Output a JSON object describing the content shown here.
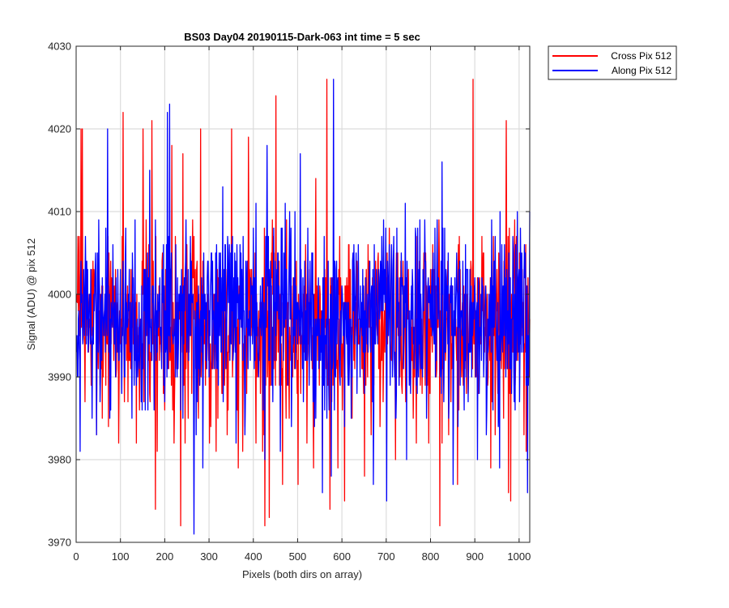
{
  "chart_data": {
    "type": "line",
    "title": "BS03 Day04 20190115-Dark-063 int time = 5 sec",
    "xlabel": "Pixels (both dirs on array)",
    "ylabel": "Signal (ADU) @ pix 512",
    "xlim": [
      0,
      1024
    ],
    "ylim": [
      3970,
      4030
    ],
    "xticks": [
      0,
      100,
      200,
      300,
      400,
      500,
      600,
      700,
      800,
      900,
      1000
    ],
    "yticks": [
      3970,
      3980,
      3990,
      4000,
      4010,
      4020,
      4030
    ],
    "grid": true,
    "legend_position": "outside-top-right",
    "series": [
      {
        "name": "Cross Pix 512",
        "color": "#ff0000",
        "mean": 3996.5,
        "spread": 5,
        "seed": 7,
        "peaks": [
          [
            2,
            3999
          ],
          [
            6,
            4007
          ],
          [
            10,
            4020
          ],
          [
            13,
            4020
          ],
          [
            58,
            3985
          ],
          [
            95,
            3982
          ],
          [
            105,
            4022
          ],
          [
            135,
            3982
          ],
          [
            150,
            4020
          ],
          [
            165,
            3988
          ],
          [
            170,
            4021
          ],
          [
            178,
            3974
          ],
          [
            182,
            3981
          ],
          [
            215,
            4018
          ],
          [
            220,
            3982
          ],
          [
            235,
            3972
          ],
          [
            240,
            4017
          ],
          [
            245,
            3982
          ],
          [
            280,
            4020
          ],
          [
            300,
            3982
          ],
          [
            315,
            3981
          ],
          [
            340,
            3983
          ],
          [
            350,
            4020
          ],
          [
            365,
            3979
          ],
          [
            375,
            3981
          ],
          [
            388,
            4019
          ],
          [
            405,
            3982
          ],
          [
            420,
            3981
          ],
          [
            425,
            3972
          ],
          [
            435,
            3973
          ],
          [
            450,
            4024
          ],
          [
            465,
            3977
          ],
          [
            480,
            3985
          ],
          [
            500,
            3977
          ],
          [
            520,
            3982
          ],
          [
            535,
            3979
          ],
          [
            540,
            4014
          ],
          [
            555,
            3980
          ],
          [
            565,
            4026
          ],
          [
            572,
            3974
          ],
          [
            590,
            3979
          ],
          [
            605,
            3975
          ],
          [
            650,
            3978
          ],
          [
            665,
            3983
          ],
          [
            700,
            3982
          ],
          [
            720,
            3980
          ],
          [
            760,
            3985
          ],
          [
            795,
            3982
          ],
          [
            820,
            3972
          ],
          [
            840,
            3983
          ],
          [
            860,
            3977
          ],
          [
            895,
            4026
          ],
          [
            935,
            3979
          ],
          [
            945,
            3983
          ],
          [
            970,
            4021
          ],
          [
            975,
            3976
          ],
          [
            980,
            3975
          ],
          [
            1010,
            3983
          ],
          [
            1015,
            3981
          ],
          [
            1022,
            3990
          ]
        ]
      },
      {
        "name": "Along Pix 512",
        "color": "#0000ff",
        "mean": 3997.5,
        "spread": 5,
        "seed": 19,
        "peaks": [
          [
            3,
            3990
          ],
          [
            8,
            3981
          ],
          [
            20,
            4007
          ],
          [
            35,
            3985
          ],
          [
            45,
            3983
          ],
          [
            70,
            4020
          ],
          [
            75,
            3985
          ],
          [
            125,
            3985
          ],
          [
            130,
            3989
          ],
          [
            140,
            3992
          ],
          [
            165,
            4015
          ],
          [
            175,
            3986
          ],
          [
            205,
            4022
          ],
          [
            210,
            4023
          ],
          [
            230,
            3994
          ],
          [
            240,
            3985
          ],
          [
            265,
            3971
          ],
          [
            270,
            3983
          ],
          [
            285,
            3979
          ],
          [
            330,
            4013
          ],
          [
            360,
            3982
          ],
          [
            380,
            3983
          ],
          [
            405,
            4011
          ],
          [
            425,
            3980
          ],
          [
            430,
            4018
          ],
          [
            460,
            3981
          ],
          [
            485,
            3984
          ],
          [
            505,
            4017
          ],
          [
            525,
            3989
          ],
          [
            540,
            3985
          ],
          [
            555,
            3976
          ],
          [
            575,
            3978
          ],
          [
            580,
            4026
          ],
          [
            605,
            3984
          ],
          [
            620,
            3985
          ],
          [
            640,
            3990
          ],
          [
            650,
            3988
          ],
          [
            670,
            3977
          ],
          [
            700,
            3975
          ],
          [
            720,
            3985
          ],
          [
            745,
            3980
          ],
          [
            790,
            3985
          ],
          [
            825,
            4016
          ],
          [
            840,
            3985
          ],
          [
            850,
            3977
          ],
          [
            875,
            3986
          ],
          [
            905,
            3980
          ],
          [
            925,
            3983
          ],
          [
            940,
            3986
          ],
          [
            955,
            3979
          ],
          [
            990,
            3986
          ],
          [
            1000,
            3987
          ],
          [
            1018,
            3976
          ],
          [
            1023,
            4010
          ]
        ]
      }
    ]
  }
}
